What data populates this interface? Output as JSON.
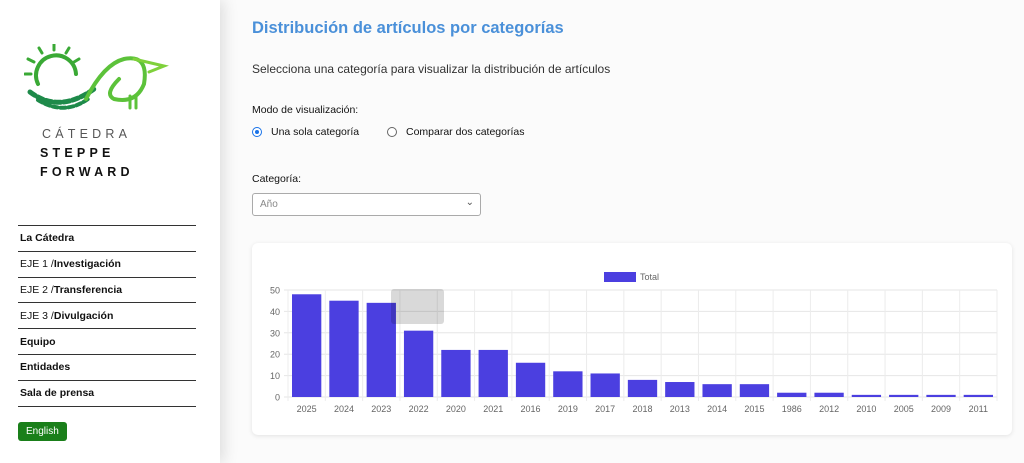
{
  "sidebar": {
    "brand": {
      "line1": "CÁTEDRA",
      "line2": "STEPPE",
      "line3": "FORWARD"
    },
    "nav": [
      {
        "prefix": "",
        "label": "La Cátedra"
      },
      {
        "prefix": "EJE 1 / ",
        "label": "Investigación"
      },
      {
        "prefix": "EJE 2 / ",
        "label": "Transferencia"
      },
      {
        "prefix": "EJE 3 / ",
        "label": "Divulgación"
      },
      {
        "prefix": "",
        "label": "Equipo"
      },
      {
        "prefix": "",
        "label": "Entidades"
      },
      {
        "prefix": "",
        "label": "Sala de prensa"
      }
    ],
    "language_button": "English",
    "colors": {
      "logo_green": "#3aa935",
      "language_button": "#1a7f1a"
    }
  },
  "main": {
    "title": "Distribución de artículos por categorías",
    "subtitle": "Selecciona una categoría para visualizar la distribución de artículos",
    "mode_label": "Modo de visualización:",
    "modes": [
      {
        "label": "Una sola categoría",
        "selected": true
      },
      {
        "label": "Comparar dos categorías",
        "selected": false
      }
    ],
    "category_label": "Categoría:",
    "category_select": {
      "value": "Año"
    }
  },
  "chart_data": {
    "type": "bar",
    "categories": [
      "2025",
      "2024",
      "2023",
      "2022",
      "2020",
      "2021",
      "2016",
      "2019",
      "2017",
      "2018",
      "2013",
      "2014",
      "2015",
      "1986",
      "2012",
      "2010",
      "2005",
      "2009",
      "2011"
    ],
    "series": [
      {
        "name": "Total",
        "values": [
          48,
          45,
          44,
          31,
          22,
          22,
          16,
          12,
          11,
          8,
          7,
          6,
          6,
          2,
          2,
          1,
          1,
          1,
          1
        ],
        "color": "#4b3fe0"
      }
    ],
    "ylim": [
      0,
      50
    ],
    "yticks": [
      0,
      10,
      20,
      30,
      40,
      50
    ],
    "grid": true,
    "legend": "top"
  }
}
